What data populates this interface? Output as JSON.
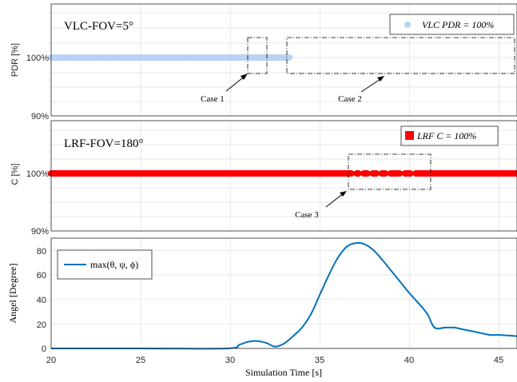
{
  "colors": {
    "vlc": "#b7d4f2",
    "lrf": "#ff0000",
    "angle": "#0072bd",
    "grid": "#dfdfdf",
    "axis": "#262626"
  },
  "chart_data": [
    {
      "type": "scatter",
      "panel": "top",
      "ylabel": "PDR [%]",
      "yticks": [
        "100%",
        "90%"
      ],
      "xlim": [
        20,
        46
      ],
      "annotation": "VLC-FOV=5°",
      "legend": {
        "label": "VLC PDR = 100%",
        "position": "top-right"
      },
      "series": [
        {
          "name": "VLC PDR = 100%",
          "x_range": [
            20,
            33.3
          ],
          "y": 100
        }
      ],
      "cases": [
        {
          "label": "Case 1",
          "x_range": [
            31,
            32
          ]
        },
        {
          "label": "Case 2",
          "x_range": [
            33.2,
            46
          ]
        }
      ]
    },
    {
      "type": "scatter",
      "panel": "middle",
      "ylabel": "C [%]",
      "yticks": [
        "100%",
        "90%"
      ],
      "xlim": [
        20,
        46
      ],
      "annotation": "LRF-FOV=180°",
      "legend": {
        "label": "LRF C = 100%",
        "position": "top-right"
      },
      "series": [
        {
          "name": "LRF C = 100%",
          "x_range": [
            20,
            46
          ],
          "y": 100,
          "gaps": [
            36.9,
            37.3,
            37.8,
            38.3,
            38.8,
            39.6,
            40.2
          ]
        }
      ],
      "cases": [
        {
          "label": "Case 3",
          "x_range": [
            36.5,
            41.1
          ]
        }
      ]
    },
    {
      "type": "line",
      "panel": "bottom",
      "xlabel": "Simulation Time [s]",
      "ylabel": "Angel [Degree]",
      "xlim": [
        20,
        46
      ],
      "ylim": [
        0,
        90
      ],
      "xticks": [
        "20",
        "25",
        "30",
        "35",
        "40",
        "45"
      ],
      "yticks": [
        "0",
        "20",
        "40",
        "60",
        "80"
      ],
      "legend": {
        "label": "max(θ, ψ, ϕ)",
        "position": "top-left"
      },
      "series": [
        {
          "name": "max(θ, ψ, ϕ)",
          "x": [
            20,
            25,
            29.8,
            30.5,
            31,
            31.5,
            32,
            32.5,
            33,
            33.5,
            34,
            34.5,
            35,
            35.5,
            36,
            36.5,
            37,
            37.5,
            38,
            38.5,
            39,
            39.5,
            40,
            40.5,
            41,
            41.4,
            42,
            42.5,
            43,
            43.5,
            44,
            44.5,
            45,
            46
          ],
          "y": [
            0,
            0,
            0,
            3,
            5.5,
            6,
            4.5,
            1.5,
            4,
            10,
            17,
            28,
            44,
            60,
            74,
            83,
            86,
            85,
            80,
            72,
            63,
            54,
            45,
            37,
            28,
            17,
            17,
            17,
            15.5,
            14,
            12.5,
            11,
            11,
            10
          ]
        }
      ]
    }
  ]
}
